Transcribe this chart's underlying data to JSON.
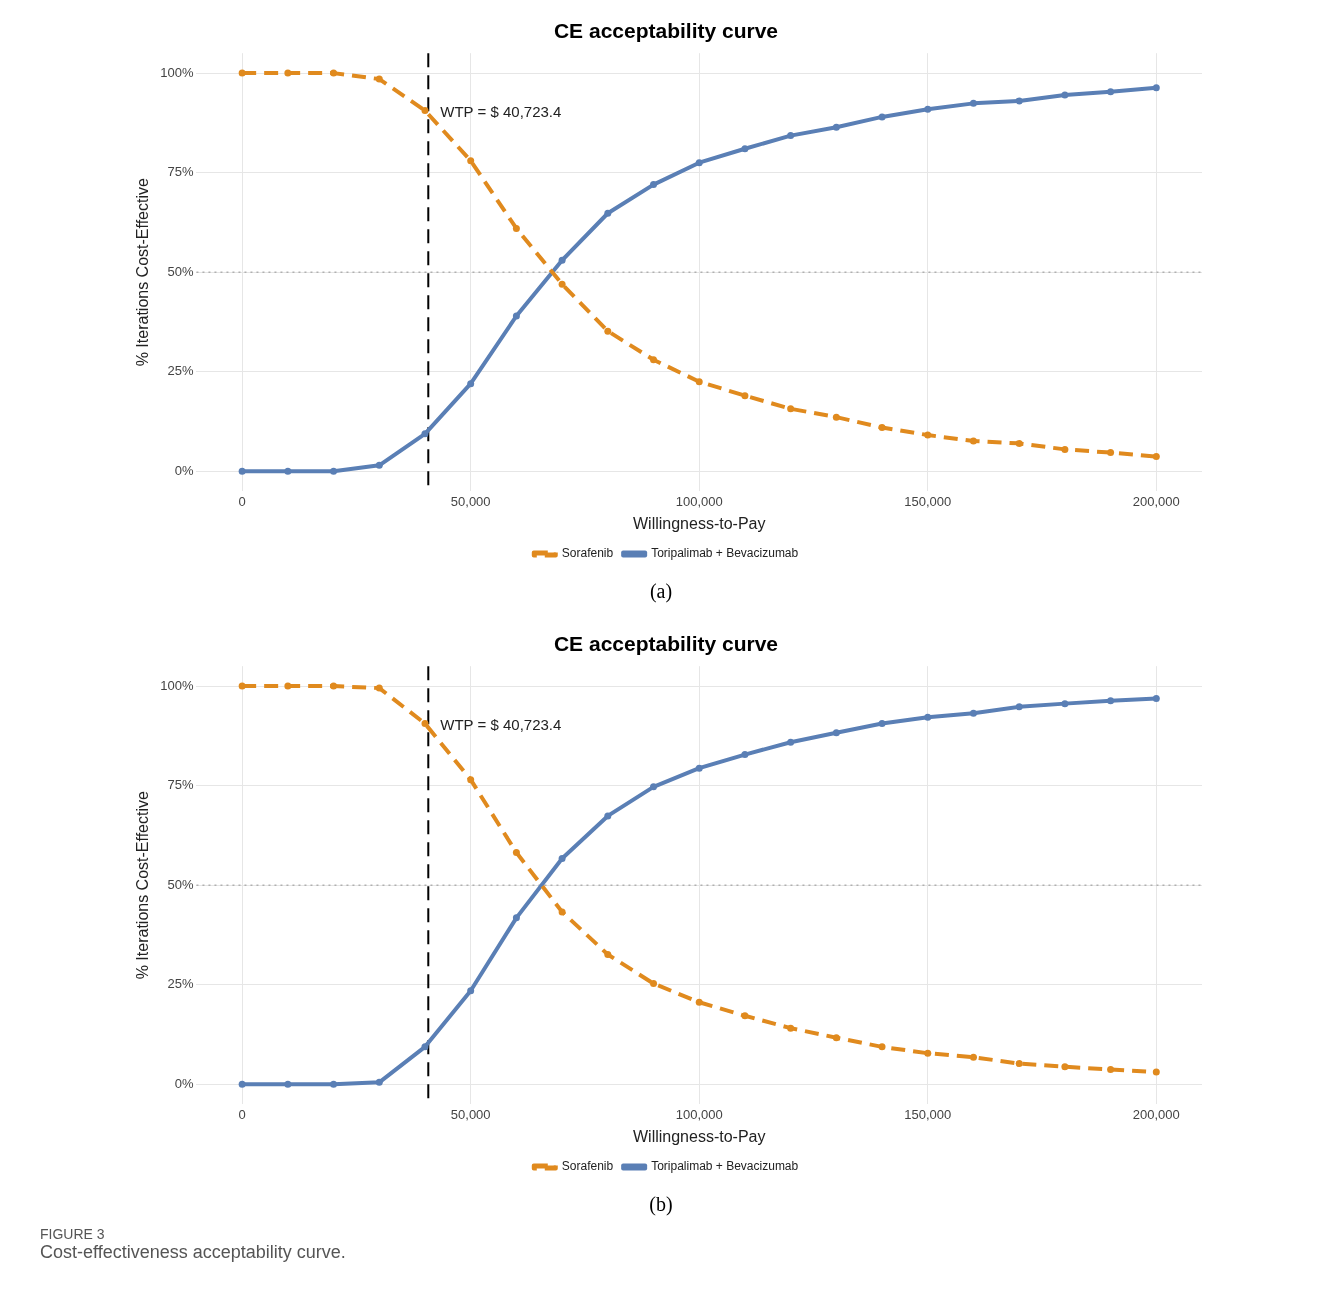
{
  "chart_data": [
    {
      "type": "line",
      "title": "CE acceptability curve",
      "xlabel": "Willingness-to-Pay",
      "ylabel": "% Iterations Cost-Effective",
      "x": [
        0,
        10000,
        20000,
        30000,
        40000,
        50000,
        60000,
        70000,
        80000,
        90000,
        100000,
        110000,
        120000,
        130000,
        140000,
        150000,
        160000,
        170000,
        180000,
        190000,
        200000
      ],
      "series": [
        {
          "name": "Sorafenib",
          "color": "#e08a1e",
          "line_style": "dashed",
          "values": [
            100,
            100,
            100,
            98.5,
            90.6,
            78,
            61,
            47,
            35.2,
            28,
            22.5,
            19,
            15.7,
            13.6,
            11,
            9.1,
            7.6,
            7,
            5.5,
            4.7,
            3.7
          ]
        },
        {
          "name": "Toripalimab + Bevacizumab",
          "color": "#5a7fb5",
          "line_style": "solid",
          "values": [
            0,
            0,
            0,
            1.5,
            9.4,
            22,
            39,
            53,
            64.8,
            72,
            77.5,
            81,
            84.3,
            86.4,
            89,
            90.9,
            92.4,
            93,
            94.5,
            95.3,
            96.3
          ]
        }
      ],
      "marker": "circle",
      "grid": true,
      "legend": "bottom",
      "xlim": [
        -10000,
        210000
      ],
      "xticks": [
        0,
        {
          "value": 50000,
          "label": "50,000"
        },
        {
          "value": 100000,
          "label": "100,000"
        },
        {
          "value": 150000,
          "label": "150,000"
        },
        {
          "value": 200000,
          "label": "200,000"
        }
      ],
      "ylim": [
        -5,
        105
      ],
      "yticks": [
        {
          "value": 0,
          "label": "0%"
        },
        {
          "value": 25,
          "label": "25%"
        },
        {
          "value": 50,
          "label": "50%"
        },
        {
          "value": 75,
          "label": "75%"
        },
        {
          "value": 100,
          "label": "100%"
        }
      ],
      "ref_lines": [
        {
          "axis": "x",
          "value": 40723.4,
          "label": "WTP = $ 40,723.4",
          "color": "#000000",
          "line_style": "dashed"
        },
        {
          "axis": "y",
          "value": 50,
          "label": null,
          "color": "#b0b0b0",
          "line_style": "dotted"
        }
      ],
      "annotations": [
        "(a)"
      ]
    },
    {
      "type": "line",
      "title": "CE acceptability curve",
      "xlabel": "Willingness-to-Pay",
      "ylabel": "% Iterations Cost-Effective",
      "x": [
        0,
        10000,
        20000,
        30000,
        40000,
        50000,
        60000,
        70000,
        80000,
        90000,
        100000,
        110000,
        120000,
        130000,
        140000,
        150000,
        160000,
        170000,
        180000,
        190000,
        200000
      ],
      "series": [
        {
          "name": "Sorafenib",
          "color": "#e08a1e",
          "line_style": "dashed",
          "values": [
            100,
            100,
            100,
            99.5,
            90.6,
            76.5,
            58.2,
            43.3,
            32.6,
            25.3,
            20.6,
            17.2,
            14.1,
            11.7,
            9.4,
            7.8,
            6.8,
            5.2,
            4.4,
            3.7,
            3.1
          ]
        },
        {
          "name": "Toripalimab + Bevacizumab",
          "color": "#5a7fb5",
          "line_style": "solid",
          "values": [
            0,
            0,
            0,
            0.5,
            9.4,
            23.5,
            41.8,
            56.7,
            67.4,
            74.7,
            79.4,
            82.8,
            85.9,
            88.3,
            90.6,
            92.2,
            93.2,
            94.8,
            95.6,
            96.3,
            96.9
          ]
        }
      ],
      "marker": "circle",
      "grid": true,
      "legend": "bottom",
      "xlim": [
        -10000,
        210000
      ],
      "xticks": [
        0,
        {
          "value": 50000,
          "label": "50,000"
        },
        {
          "value": 100000,
          "label": "100,000"
        },
        {
          "value": 150000,
          "label": "150,000"
        },
        {
          "value": 200000,
          "label": "200,000"
        }
      ],
      "ylim": [
        -5,
        105
      ],
      "yticks": [
        {
          "value": 0,
          "label": "0%"
        },
        {
          "value": 25,
          "label": "25%"
        },
        {
          "value": 50,
          "label": "50%"
        },
        {
          "value": 75,
          "label": "75%"
        },
        {
          "value": 100,
          "label": "100%"
        }
      ],
      "ref_lines": [
        {
          "axis": "x",
          "value": 40723.4,
          "label": "WTP = $ 40,723.4",
          "color": "#000000",
          "line_style": "dashed"
        },
        {
          "axis": "y",
          "value": 50,
          "label": null,
          "color": "#b0b0b0",
          "line_style": "dotted"
        }
      ],
      "annotations": [
        "(b)",
        "FIGURE 3",
        "Cost-effectiveness acceptability curve."
      ]
    }
  ]
}
